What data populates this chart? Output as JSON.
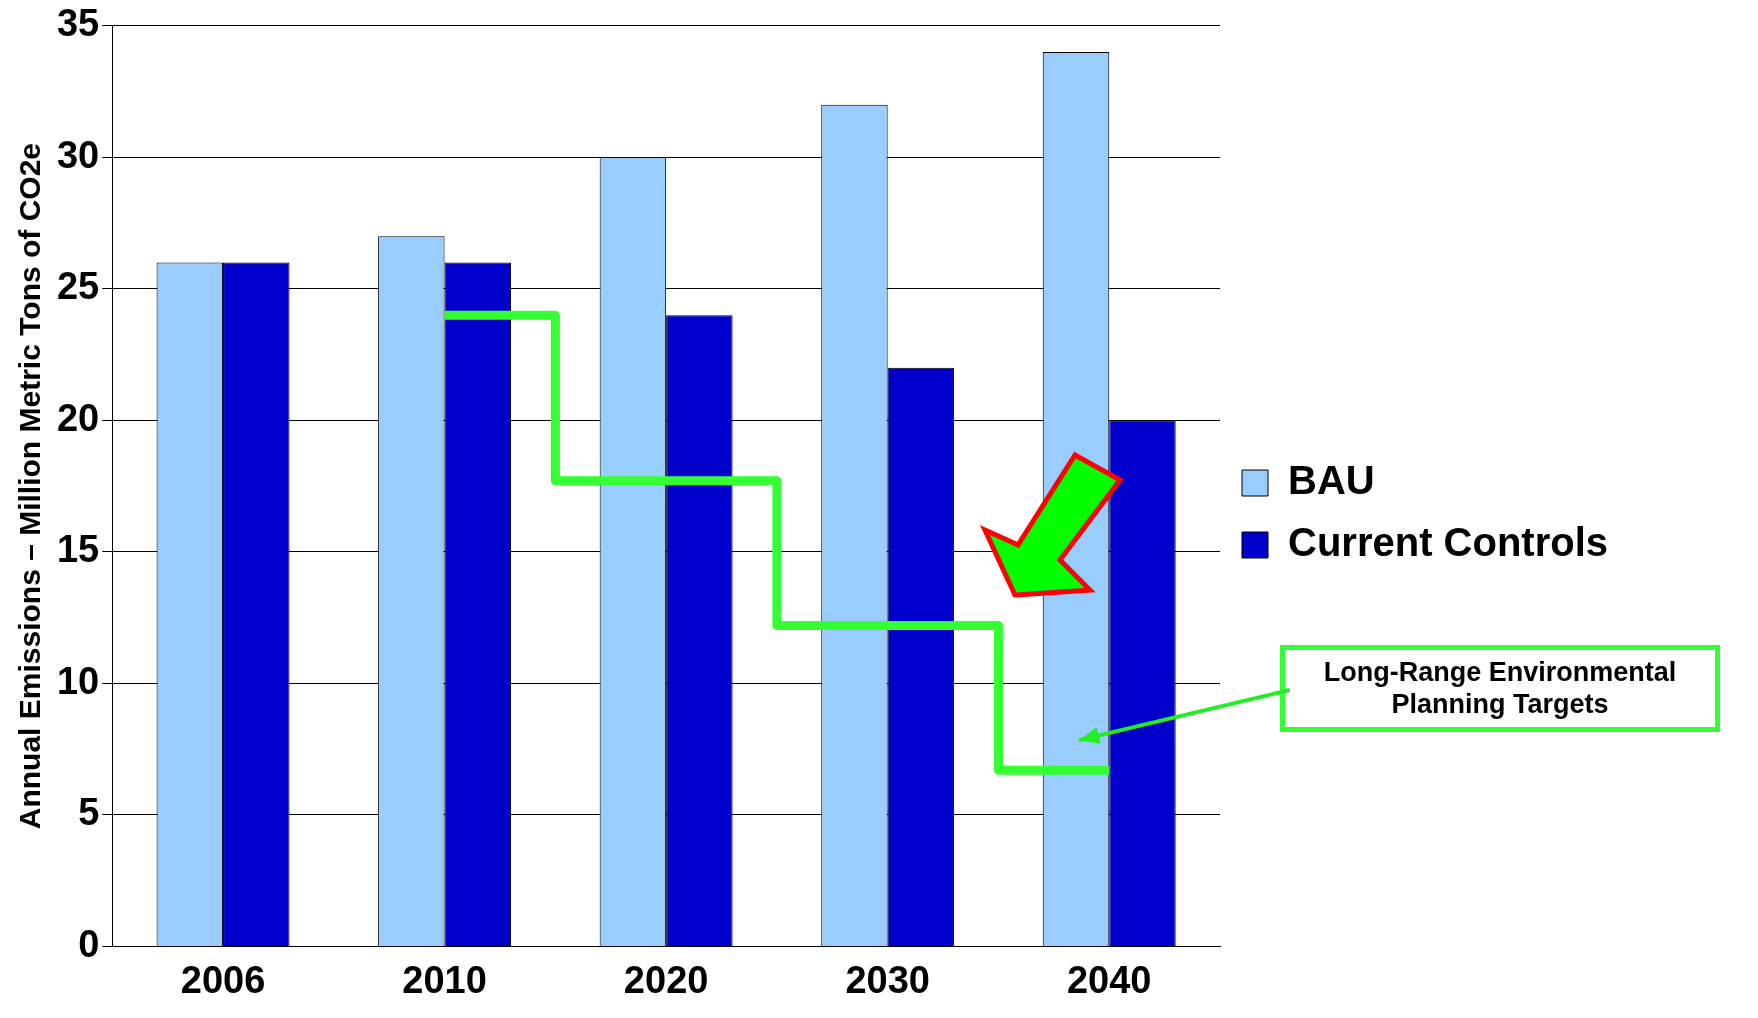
{
  "chart_data": {
    "type": "bar",
    "ylabel": "Annual Emissions – Million Metric Tons of CO2e",
    "categories": [
      "2006",
      "2010",
      "2020",
      "2030",
      "2040"
    ],
    "series": [
      {
        "name": "BAU",
        "color": "#99ccff",
        "values": [
          26,
          27,
          30,
          32,
          34
        ]
      },
      {
        "name": "Current Controls",
        "color": "#0000cc",
        "values": [
          26,
          26,
          24,
          22,
          20
        ]
      },
      {
        "name": "Long-Range Environmental Planning Targets",
        "type": "step",
        "color": "#33ff33",
        "values": [
          null,
          24,
          17.7,
          12.2,
          6.7
        ]
      }
    ],
    "ylim": [
      0,
      35
    ],
    "yticks": [
      0,
      5,
      10,
      15,
      20,
      25,
      30,
      35
    ],
    "grid": "y",
    "legend": "right"
  }
}
